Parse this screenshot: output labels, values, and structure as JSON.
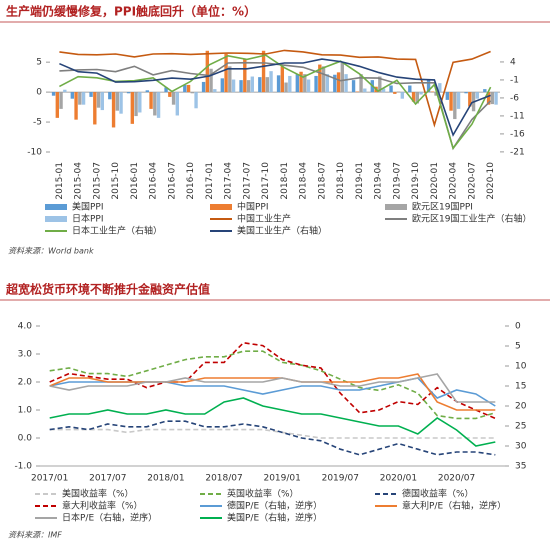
{
  "chart_data": [
    {
      "type": "bar",
      "title": "生产端仍缓慢修复，PPI触底回升（单位：%）",
      "source": "资料来源：World bank",
      "categories": [
        "2015-01",
        "2015-04",
        "2015-07",
        "2015-10",
        "2016-01",
        "2016-04",
        "2016-07",
        "2016-10",
        "2017-01",
        "2017-04",
        "2017-07",
        "2017-10",
        "2018-01",
        "2018-04",
        "2018-07",
        "2018-10",
        "2019-01",
        "2019-04",
        "2019-07",
        "2019-10",
        "2020-01",
        "2020-04",
        "2020-07",
        "2020-10"
      ],
      "ylim": [
        -11,
        8.7
      ],
      "yticks": [
        5,
        0,
        -5,
        -10
      ],
      "y2lim": [
        -22.7,
        10.1
      ],
      "y2ticks": [
        4,
        -1,
        -6,
        -11,
        -16,
        -21
      ],
      "series": [
        {
          "name": "美国PPI",
          "type": "bar",
          "color": "#5b9bd5",
          "values": [
            -0.6,
            -1.1,
            -0.8,
            -1.2,
            -0.2,
            0.3,
            0.8,
            1.2,
            1.7,
            2.3,
            2.0,
            2.5,
            2.8,
            3.0,
            2.7,
            2.9,
            2.0,
            2.0,
            1.1,
            1.1,
            2.1,
            -1.3,
            -0.2,
            0.5
          ]
        },
        {
          "name": "中国PPI",
          "type": "bar",
          "color": "#ed7d31",
          "values": [
            -4.3,
            -4.6,
            -5.4,
            -5.9,
            -5.3,
            -2.8,
            -0.8,
            1.2,
            6.9,
            6.4,
            5.5,
            6.9,
            4.3,
            3.4,
            4.6,
            3.3,
            0.1,
            0.9,
            -0.3,
            -1.6,
            0.1,
            -3.1,
            -2.4,
            -2.1
          ]
        },
        {
          "name": "欧元区19国PPI",
          "type": "bar",
          "color": "#a5a5a5",
          "values": [
            -2.8,
            -2.1,
            -2.6,
            -3.1,
            -4.0,
            -3.9,
            -2.1,
            -0.2,
            3.9,
            4.3,
            2.0,
            2.5,
            1.6,
            3.0,
            4.3,
            4.9,
            3.0,
            2.6,
            0.1,
            -1.9,
            -0.6,
            -4.5,
            -3.2,
            -2.0
          ]
        },
        {
          "name": "日本PPI",
          "type": "bar",
          "color": "#9dc3e6",
          "values": [
            0.4,
            -2.1,
            -3.0,
            -3.6,
            -3.4,
            -4.3,
            -3.9,
            -2.7,
            0.5,
            2.1,
            2.6,
            3.5,
            2.7,
            2.1,
            3.0,
            3.0,
            0.6,
            0.6,
            -1.1,
            -0.4,
            1.5,
            -2.8,
            -1.1,
            -2.1
          ]
        },
        {
          "name": "中国工业生产",
          "type": "line",
          "axis": "y2",
          "color": "#c55a11",
          "values": [
            6.8,
            6.1,
            6.0,
            6.2,
            5.4,
            6.2,
            6.3,
            6.1,
            6.3,
            6.5,
            6.4,
            6.2,
            7.2,
            6.8,
            6.0,
            5.9,
            5.3,
            5.4,
            4.8,
            4.7,
            -13.5,
            3.9,
            4.8,
            6.9
          ]
        },
        {
          "name": "欧元区19国工业生产（右轴）",
          "type": "line",
          "axis": "y2",
          "color": "#7f7f7f",
          "values": [
            1.5,
            1.8,
            1.9,
            1.3,
            2.8,
            0.4,
            1.6,
            0.8,
            0.2,
            3.7,
            3.8,
            3.7,
            3.1,
            2.5,
            0.8,
            -1.2,
            -0.4,
            -0.5,
            -2.0,
            -1.8,
            -1.8,
            -20.0,
            -12.0,
            -6.8
          ]
        },
        {
          "name": "日本工业生产（右轴）",
          "type": "line",
          "axis": "y2",
          "color": "#70ad47",
          "values": [
            -2.8,
            -0.1,
            -0.4,
            -1.4,
            -1.2,
            -0.4,
            -4.2,
            -1.4,
            3.2,
            5.7,
            4.7,
            5.9,
            2.4,
            -0.2,
            2.2,
            4.2,
            0.7,
            -4.1,
            -1.1,
            -7.7,
            -2.3,
            -20.0,
            -13.3,
            -3.0
          ]
        },
        {
          "name": "美国工业生产（右轴）",
          "type": "line",
          "axis": "y2",
          "color": "#264478",
          "values": [
            3.5,
            1.3,
            0.9,
            -1.6,
            -1.5,
            -1.1,
            -0.5,
            -0.8,
            0.1,
            2.1,
            2.1,
            2.9,
            3.7,
            3.7,
            4.8,
            4.1,
            2.8,
            1.1,
            -0.2,
            -0.8,
            -1.0,
            -16.3,
            -7.3,
            -5.3
          ]
        }
      ]
    },
    {
      "type": "line",
      "title": "超宽松货币环境不断推升金融资产估值",
      "source": "资料来源：IMF",
      "categories": [
        "2017/01",
        null,
        null,
        "2017/07",
        null,
        null,
        "2018/01",
        null,
        null,
        "2018/07",
        null,
        null,
        "2019/01",
        null,
        null,
        "2019/07",
        null,
        null,
        "2020/01",
        null,
        null,
        "2020/07",
        null,
        null
      ],
      "ylim": [
        -1,
        4
      ],
      "yticks": [
        {
          "value": 4,
          "label": "4.0"
        },
        {
          "value": 3,
          "label": "3.0"
        },
        {
          "value": 2,
          "label": "2.0"
        },
        {
          "value": 1,
          "label": "1.0"
        },
        {
          "value": 0,
          "label": "0.0"
        },
        {
          "value": -1,
          "label": "-1.0"
        }
      ],
      "y2lim": [
        0,
        35
      ],
      "y2_reversed": true,
      "y2ticks": [
        0,
        5,
        10,
        15,
        20,
        25,
        30,
        35
      ],
      "series": [
        {
          "name": "美国收益率（%）",
          "dashed": true,
          "color": "#c9c9c9",
          "values": [
            0.3,
            0.3,
            0.3,
            0.3,
            0.2,
            0.3,
            0.3,
            0.3,
            0.3,
            0.3,
            0.3,
            0.3,
            0.2,
            0.1,
            0.0,
            0.0,
            0.0,
            0.0,
            0.0,
            0.0,
            0.0,
            0.0,
            0.0,
            0.0
          ]
        },
        {
          "name": "英国收益率（%）",
          "dashed": true,
          "color": "#70ad47",
          "values": [
            2.4,
            2.5,
            2.3,
            2.3,
            2.2,
            2.4,
            2.6,
            2.8,
            2.9,
            2.9,
            3.1,
            3.1,
            2.7,
            2.6,
            2.4,
            2.1,
            1.8,
            1.7,
            1.9,
            1.6,
            0.8,
            0.7,
            0.7,
            0.9
          ]
        },
        {
          "name": "德国收益率（%）",
          "dashed": true,
          "color": "#264478",
          "values": [
            0.3,
            0.4,
            0.3,
            0.5,
            0.4,
            0.4,
            0.6,
            0.6,
            0.4,
            0.4,
            0.5,
            0.4,
            0.2,
            0.0,
            -0.1,
            -0.4,
            -0.6,
            -0.4,
            -0.2,
            -0.4,
            -0.6,
            -0.5,
            -0.5,
            -0.6
          ]
        },
        {
          "name": "意大利收益率（%）",
          "dashed": true,
          "color": "#c00000",
          "values": [
            2.0,
            2.3,
            2.2,
            2.1,
            2.1,
            1.8,
            2.0,
            2.0,
            2.7,
            2.7,
            3.4,
            3.3,
            2.8,
            2.6,
            2.5,
            1.6,
            0.9,
            1.0,
            1.3,
            1.2,
            1.8,
            1.3,
            1.0,
            0.7
          ]
        },
        {
          "name": "德国P/E（右轴，逆序）",
          "axis": "y2",
          "color": "#5b9bd5",
          "values": [
            15,
            14,
            14,
            14,
            14,
            14,
            14,
            15,
            15,
            15,
            16,
            17,
            16,
            15,
            15,
            16,
            16,
            15,
            14,
            13,
            18,
            16,
            17,
            20
          ]
        },
        {
          "name": "意大利P/E（右轴，逆序）",
          "axis": "y2",
          "color": "#ed7d31",
          "values": [
            15,
            13,
            13,
            14,
            14,
            14,
            14,
            14,
            13,
            13,
            13,
            13,
            13,
            14,
            14,
            14,
            14,
            13,
            13,
            12,
            19,
            21,
            21,
            21
          ]
        },
        {
          "name": "日本P/E（右轴，逆序）",
          "axis": "y2",
          "color": "#a5a5a5",
          "values": [
            15,
            16,
            15,
            15,
            15,
            14,
            14,
            13,
            14,
            14,
            14,
            14,
            13,
            14,
            14,
            15,
            15,
            14,
            14,
            13,
            12,
            19,
            19,
            19
          ]
        },
        {
          "name": "美国P/E（右轴，逆序）",
          "axis": "y2",
          "color": "#00b050",
          "values": [
            23,
            22,
            22,
            21,
            22,
            22,
            21,
            22,
            22,
            19,
            18,
            20,
            21,
            22,
            22,
            23,
            24,
            25,
            25,
            27,
            23,
            26,
            30,
            29
          ]
        }
      ]
    }
  ]
}
